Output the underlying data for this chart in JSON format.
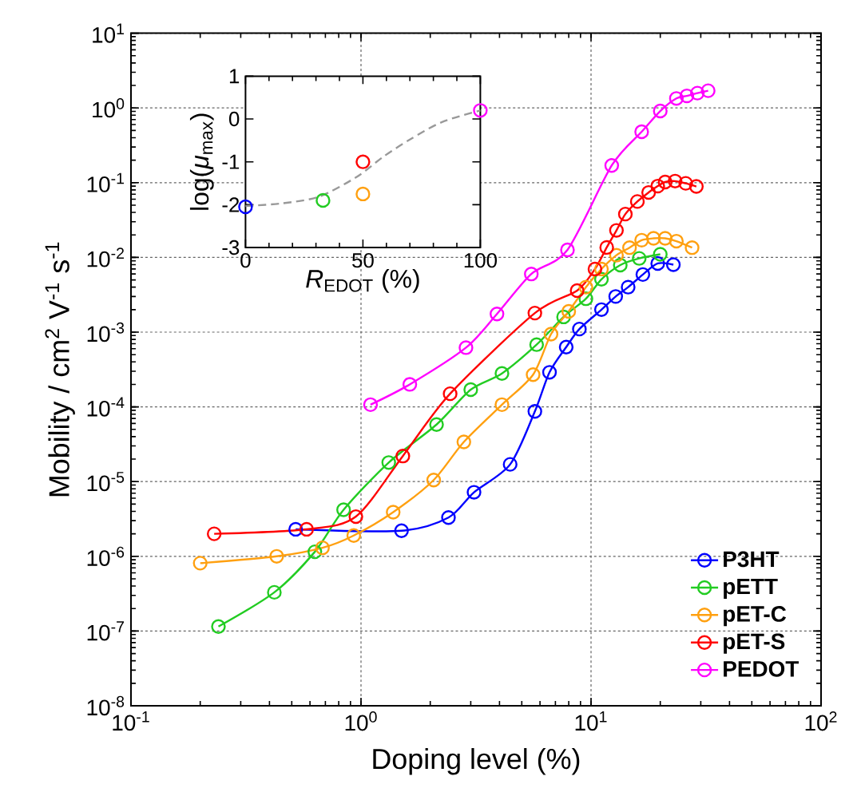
{
  "chart_data": [
    {
      "type": "line",
      "xlabel": "Doping level (%)",
      "ylabel": "Mobility / cm$^{2}$ V$^{-1}$ s$^{-1}$",
      "log": "xy",
      "grid": true,
      "legend": "bottom right",
      "marker": "circle",
      "xlim": [
        0.1,
        100
      ],
      "ylim": [
        1e-08,
        10
      ],
      "xticks": [
        {
          "value": 0.1,
          "label": "10$^{-1}$"
        },
        {
          "value": 1,
          "label": "10$^{0}$"
        },
        {
          "value": 10,
          "label": "10$^{1}$"
        },
        {
          "value": 100,
          "label": "10$^{2}$"
        }
      ],
      "yticks": [
        {
          "value": 1e-08,
          "label": "10$^{-8}$"
        },
        {
          "value": 1e-07,
          "label": "10$^{-7}$"
        },
        {
          "value": 1e-06,
          "label": "10$^{-6}$"
        },
        {
          "value": 1e-05,
          "label": "10$^{-5}$"
        },
        {
          "value": 0.0001,
          "label": "10$^{-4}$"
        },
        {
          "value": 0.001,
          "label": "10$^{-3}$"
        },
        {
          "value": 0.01,
          "label": "10$^{-2}$"
        },
        {
          "value": 0.1,
          "label": "10$^{-1}$"
        },
        {
          "value": 1,
          "label": "10$^{0}$"
        },
        {
          "value": 10,
          "label": "10$^{1}$"
        }
      ],
      "series": [
        {
          "name": "P3HT",
          "color": "#0000ff",
          "x": [
            0.52,
            1.5,
            2.4,
            3.1,
            4.45,
            5.7,
            6.6,
            7.8,
            8.9,
            11.1,
            12.8,
            14.5,
            16.8,
            19.5,
            22.8
          ],
          "values": [
            2.3e-06,
            2.2e-06,
            3.3e-06,
            7.2e-06,
            1.7e-05,
            8.7e-05,
            0.00029,
            0.00063,
            0.0011,
            0.002,
            0.003,
            0.004,
            0.0059,
            0.0083,
            0.008
          ]
        },
        {
          "name": "pETT",
          "color": "#22cc22",
          "x": [
            0.24,
            0.42,
            0.63,
            0.84,
            1.32,
            2.13,
            3.0,
            4.1,
            5.8,
            7.6,
            9.5,
            11.1,
            13.4,
            16.2,
            20
          ],
          "values": [
            1.15e-07,
            3.3e-07,
            1.15e-06,
            4.2e-06,
            1.8e-05,
            5.8e-05,
            0.00017,
            0.00028,
            0.00068,
            0.0016,
            0.0028,
            0.0051,
            0.0079,
            0.0097,
            0.011
          ]
        },
        {
          "name": "pET-C",
          "color": "#ffa010",
          "x": [
            0.2,
            0.43,
            0.68,
            0.93,
            1.38,
            2.07,
            2.8,
            4.1,
            5.6,
            6.7,
            8.0,
            9.5,
            11.1,
            12.9,
            14.7,
            16.6,
            18.7,
            21,
            23.5,
            27.5
          ],
          "values": [
            8.1e-07,
            1e-06,
            1.3e-06,
            1.9e-06,
            3.9e-06,
            1.05e-05,
            3.4e-05,
            0.000107,
            0.00027,
            0.00094,
            0.0019,
            0.004,
            0.007,
            0.0107,
            0.0135,
            0.017,
            0.018,
            0.018,
            0.0165,
            0.0135
          ]
        },
        {
          "name": "pET-S",
          "color": "#ff0000",
          "x": [
            0.23,
            0.58,
            0.95,
            1.52,
            2.44,
            5.7,
            8.7,
            10.4,
            11.7,
            12.9,
            14.1,
            15.9,
            17.8,
            19.5,
            21,
            23.2,
            25.8,
            28.7
          ],
          "values": [
            2e-06,
            2.3e-06,
            3.4e-06,
            2.2e-05,
            0.00015,
            0.0018,
            0.0036,
            0.007,
            0.0136,
            0.023,
            0.038,
            0.056,
            0.074,
            0.09,
            0.102,
            0.105,
            0.098,
            0.089
          ]
        },
        {
          "name": "PEDOT",
          "color": "#ff00ff",
          "x": [
            1.1,
            1.63,
            2.86,
            3.9,
            5.5,
            7.9,
            12.3,
            16.6,
            20,
            23.5,
            26.1,
            29,
            32.3
          ],
          "values": [
            0.000107,
            0.0002,
            0.00062,
            0.00175,
            0.006,
            0.0126,
            0.17,
            0.48,
            0.91,
            1.34,
            1.45,
            1.58,
            1.7
          ]
        }
      ]
    },
    {
      "type": "scatter",
      "xlabel": "*R*$_{EDOT}$ (%)",
      "ylabel": "log(*μ*$_{max}$)",
      "marker": "circle",
      "xlim": [
        0,
        100
      ],
      "ylim": [
        -3,
        1
      ],
      "xticks": [
        0,
        50,
        100
      ],
      "yticks": [
        -3,
        -2,
        -1,
        0,
        1
      ],
      "series": [
        {
          "color": "#0000ff",
          "x": [
            0
          ],
          "values": [
            -2.05
          ]
        },
        {
          "color": "#22cc22",
          "x": [
            33
          ],
          "values": [
            -1.9
          ]
        },
        {
          "color": "#ff0000",
          "x": [
            50
          ],
          "values": [
            -1.0
          ]
        },
        {
          "color": "#ffa010",
          "x": [
            50
          ],
          "values": [
            -1.75
          ]
        },
        {
          "color": "#ff00ff",
          "x": [
            100
          ],
          "values": [
            0.2
          ]
        },
        {
          "type": "line",
          "line_style": "dashed",
          "marker": "none",
          "color": "#999999",
          "x": [
            0,
            15.6,
            31.5,
            47.4,
            58.7,
            70,
            83.7,
            100
          ],
          "values": [
            -2.03,
            -1.97,
            -1.81,
            -1.35,
            -0.88,
            -0.48,
            -0.07,
            0.2
          ]
        }
      ]
    }
  ]
}
